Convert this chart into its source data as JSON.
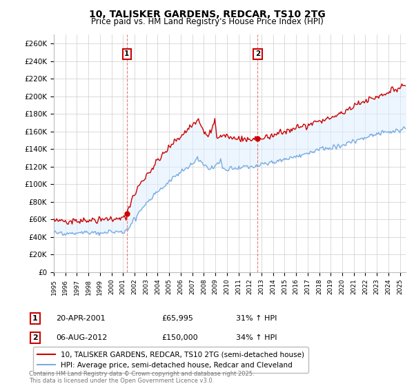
{
  "title": "10, TALISKER GARDENS, REDCAR, TS10 2TG",
  "subtitle": "Price paid vs. HM Land Registry's House Price Index (HPI)",
  "ylabel_ticks": [
    "£0",
    "£20K",
    "£40K",
    "£60K",
    "£80K",
    "£100K",
    "£120K",
    "£140K",
    "£160K",
    "£180K",
    "£200K",
    "£220K",
    "£240K",
    "£260K"
  ],
  "ytick_values": [
    0,
    20000,
    40000,
    60000,
    80000,
    100000,
    120000,
    140000,
    160000,
    180000,
    200000,
    220000,
    240000,
    260000
  ],
  "ylim": [
    0,
    270000
  ],
  "legend_line1": "10, TALISKER GARDENS, REDCAR, TS10 2TG (semi-detached house)",
  "legend_line2": "HPI: Average price, semi-detached house, Redcar and Cleveland",
  "marker1_label": "1",
  "marker1_date": "20-APR-2001",
  "marker1_price": "£65,995",
  "marker1_hpi": "31% ↑ HPI",
  "marker2_label": "2",
  "marker2_date": "06-AUG-2012",
  "marker2_price": "£150,000",
  "marker2_hpi": "34% ↑ HPI",
  "copyright": "Contains HM Land Registry data © Crown copyright and database right 2025.\nThis data is licensed under the Open Government Licence v3.0.",
  "line_color_red": "#cc0000",
  "line_color_blue": "#7aade0",
  "fill_color_blue": "#ddeeff",
  "grid_color": "#cccccc",
  "bg_color": "#ffffff"
}
